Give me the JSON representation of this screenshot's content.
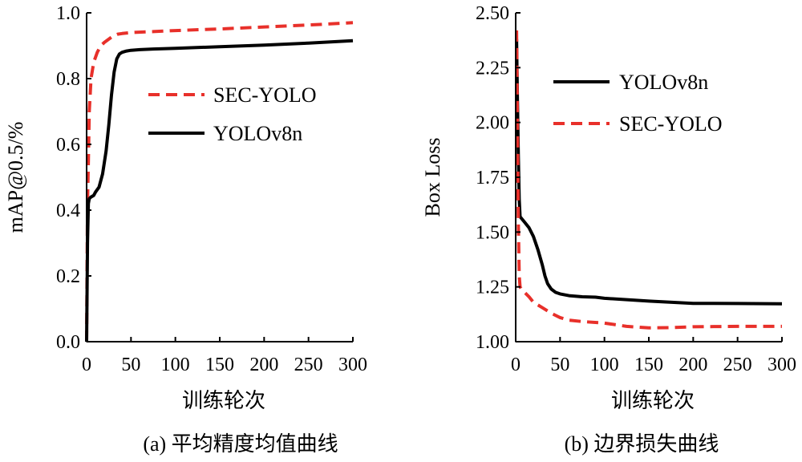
{
  "chart_data": [
    {
      "type": "line",
      "caption": "(a) 平均精度均值曲线",
      "xlabel": "训练轮次",
      "ylabel": "mAP@0.5/%",
      "xlim": [
        0,
        300
      ],
      "ylim": [
        0,
        1.0
      ],
      "xticks": [
        0,
        50,
        100,
        150,
        200,
        250,
        300
      ],
      "yticks": [
        0.0,
        0.2,
        0.4,
        0.6,
        0.8,
        1.0
      ],
      "ytick_labels": [
        "0.0",
        "0.2",
        "0.4",
        "0.6",
        "0.8",
        "1.0"
      ],
      "legend_position": "upper-right",
      "series": [
        {
          "name": "SEC-YOLO",
          "color": "#e8302a",
          "dash": "dashed",
          "x": [
            0,
            1,
            2,
            3,
            5,
            8,
            12,
            16,
            20,
            25,
            30,
            35,
            40,
            50,
            75,
            100,
            150,
            200,
            250,
            300
          ],
          "y": [
            0.0,
            0.42,
            0.55,
            0.7,
            0.8,
            0.85,
            0.88,
            0.9,
            0.91,
            0.92,
            0.93,
            0.935,
            0.937,
            0.94,
            0.943,
            0.946,
            0.951,
            0.957,
            0.963,
            0.97
          ]
        },
        {
          "name": "YOLOv8n",
          "color": "#000000",
          "dash": "solid",
          "x": [
            0,
            1,
            2,
            3,
            5,
            8,
            10,
            14,
            18,
            22,
            25,
            28,
            31,
            34,
            37,
            40,
            45,
            50,
            60,
            75,
            100,
            150,
            200,
            250,
            300
          ],
          "y": [
            0.0,
            0.3,
            0.42,
            0.435,
            0.44,
            0.445,
            0.455,
            0.47,
            0.51,
            0.58,
            0.66,
            0.75,
            0.82,
            0.86,
            0.875,
            0.88,
            0.884,
            0.886,
            0.888,
            0.89,
            0.892,
            0.897,
            0.902,
            0.908,
            0.915
          ]
        }
      ]
    },
    {
      "type": "line",
      "caption": "(b) 边界损失曲线",
      "xlabel": "训练轮次",
      "ylabel": "Box Loss",
      "xlim": [
        0,
        300
      ],
      "ylim": [
        1.0,
        2.5
      ],
      "xticks": [
        0,
        50,
        100,
        150,
        200,
        250,
        300
      ],
      "yticks": [
        1.0,
        1.25,
        1.5,
        1.75,
        2.0,
        2.25,
        2.5
      ],
      "ytick_labels": [
        "1.00",
        "1.25",
        "1.50",
        "1.75",
        "2.00",
        "2.25",
        "2.50"
      ],
      "legend_position": "upper-right",
      "series": [
        {
          "name": "YOLOv8n",
          "color": "#000000",
          "dash": "solid",
          "x": [
            1,
            2,
            3,
            4,
            5,
            7,
            10,
            15,
            20,
            25,
            30,
            33,
            36,
            40,
            45,
            50,
            60,
            75,
            90,
            100,
            150,
            200,
            250,
            300
          ],
          "y": [
            2.38,
            2.1,
            1.85,
            1.65,
            1.57,
            1.56,
            1.545,
            1.52,
            1.48,
            1.42,
            1.35,
            1.3,
            1.265,
            1.24,
            1.225,
            1.218,
            1.21,
            1.205,
            1.203,
            1.198,
            1.185,
            1.175,
            1.174,
            1.173
          ]
        },
        {
          "name": "SEC-YOLO",
          "color": "#e8302a",
          "dash": "dashed",
          "x": [
            1,
            2,
            3,
            4,
            5,
            7,
            10,
            15,
            20,
            30,
            40,
            50,
            60,
            75,
            100,
            125,
            150,
            175,
            200,
            250,
            300
          ],
          "y": [
            2.42,
            2.0,
            1.55,
            1.3,
            1.25,
            1.235,
            1.225,
            1.205,
            1.18,
            1.155,
            1.13,
            1.11,
            1.098,
            1.092,
            1.085,
            1.07,
            1.063,
            1.064,
            1.068,
            1.07,
            1.07
          ]
        }
      ]
    }
  ]
}
